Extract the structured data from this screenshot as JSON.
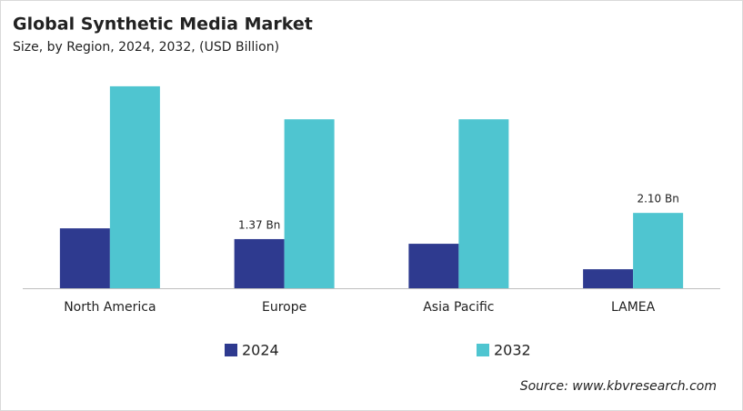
{
  "chart_data": {
    "type": "bar",
    "title": "Global Synthetic Media Market",
    "subtitle": "Size, by Region, 2024, 2032, (USD Billion)",
    "source": "Source: www.kbvresearch.com",
    "categories": [
      "North America",
      "Europe",
      "Asia Pacific",
      "LAMEA"
    ],
    "series": [
      {
        "name": "2024",
        "color": "#2e3a8f",
        "values": [
          1.67,
          1.37,
          1.24,
          0.53
        ],
        "value_labels": [
          null,
          "1.37 Bn",
          null,
          null
        ]
      },
      {
        "name": "2032",
        "color": "#4fc5d0",
        "values": [
          5.63,
          4.71,
          4.71,
          2.1
        ],
        "value_labels": [
          null,
          null,
          null,
          "2.10 Bn"
        ]
      }
    ]
  }
}
